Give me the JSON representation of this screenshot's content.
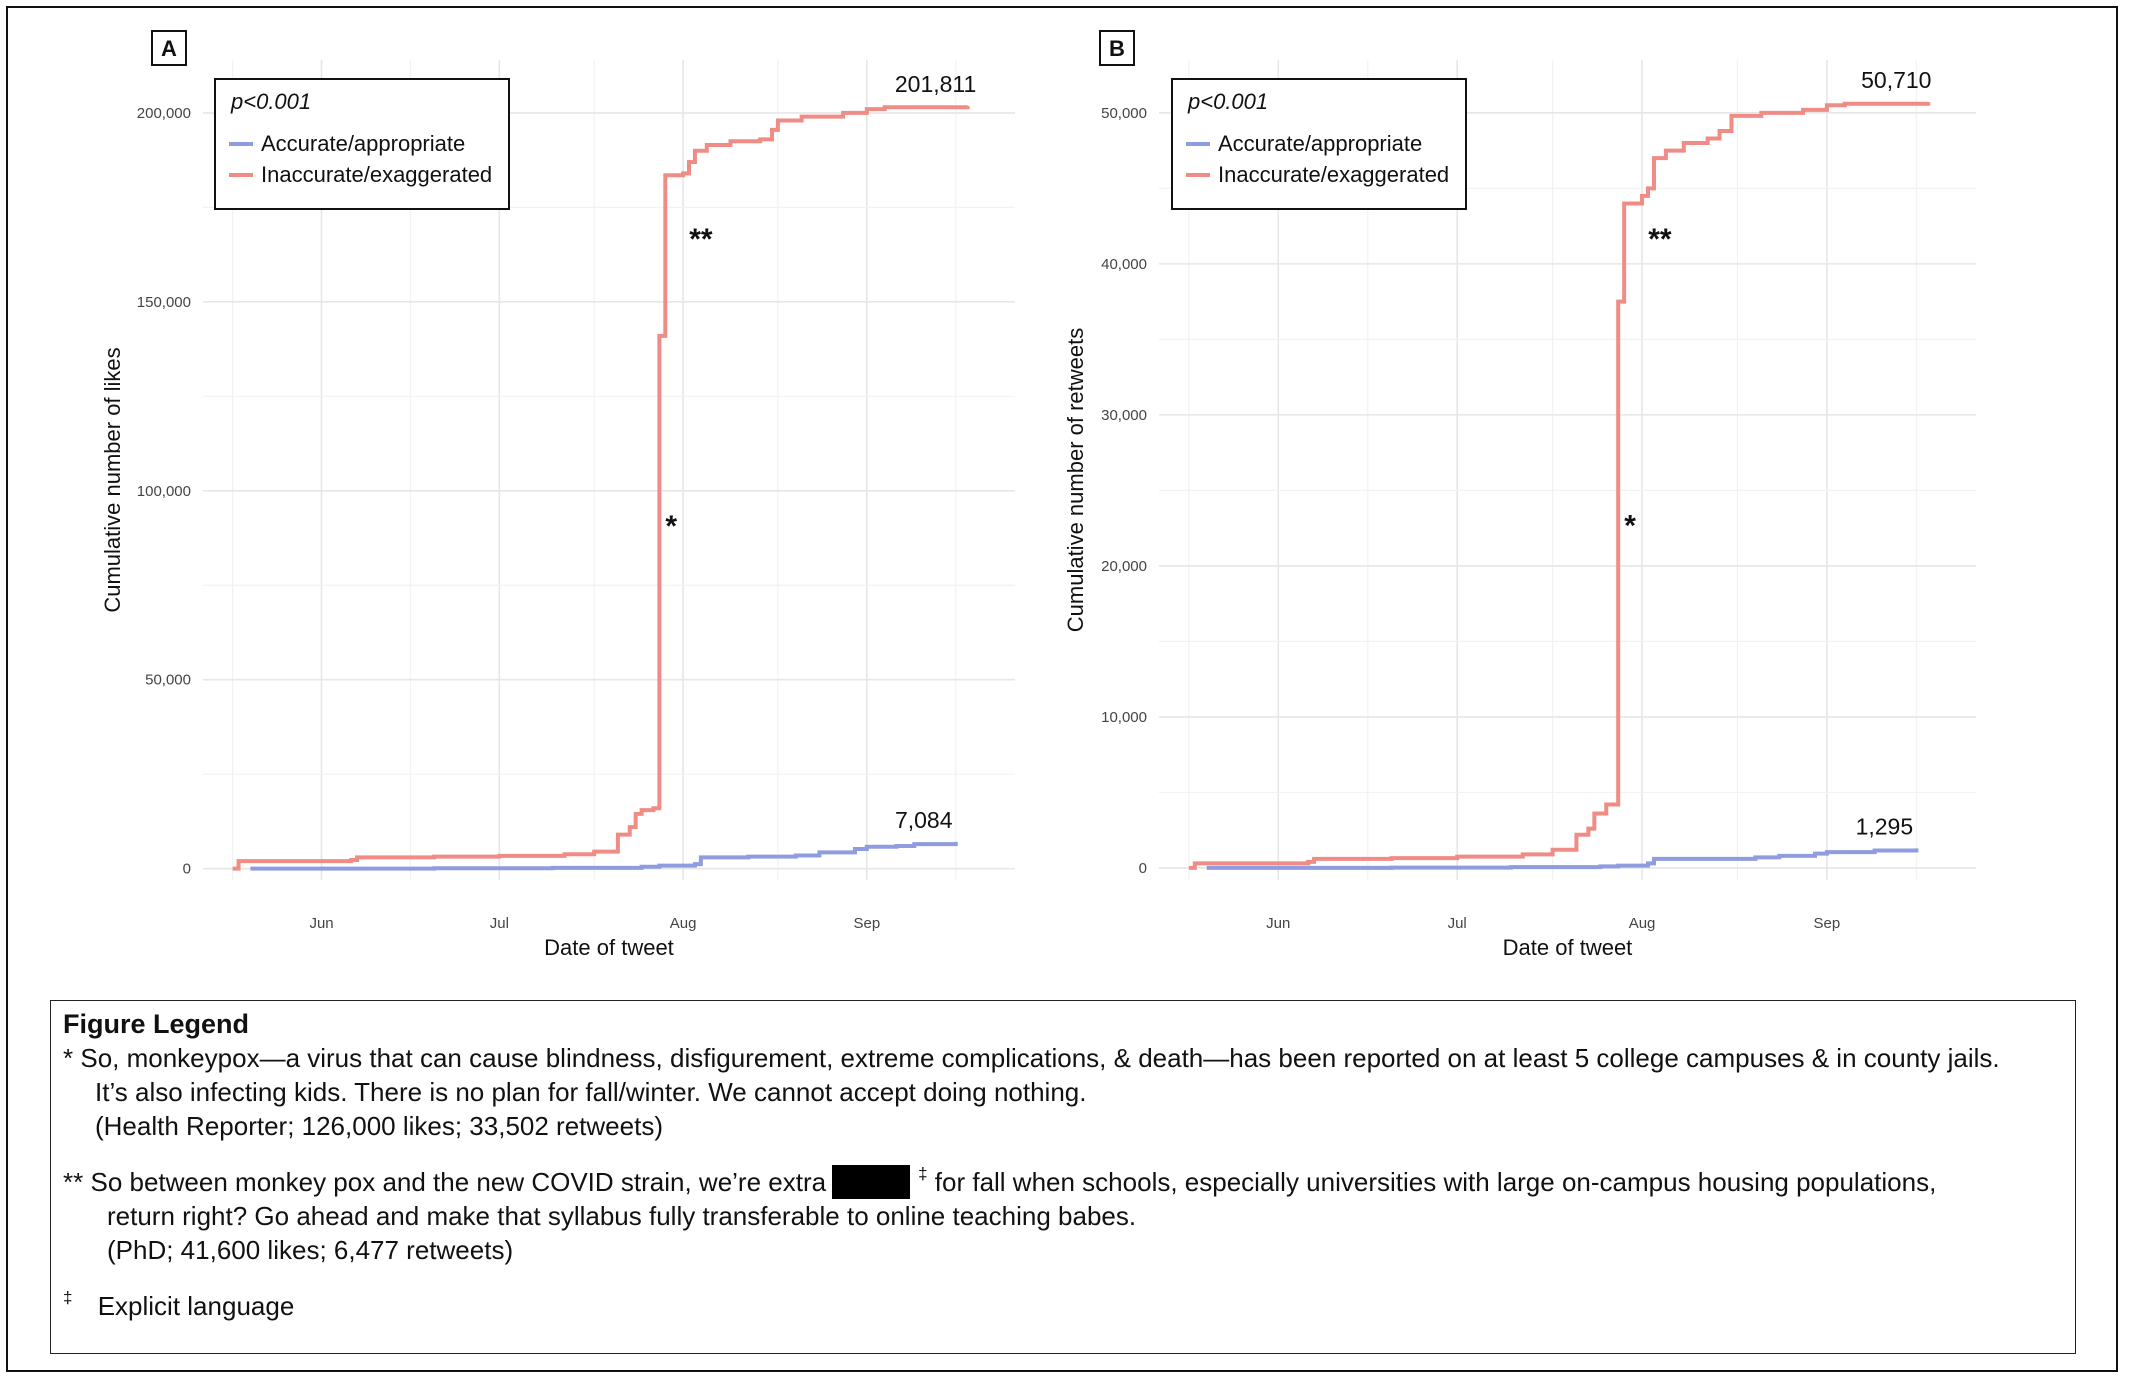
{
  "chart_data": [
    {
      "panel": "A",
      "type": "line",
      "step": true,
      "ylabel": "Cumulative number of likes",
      "xlabel": "Date of tweet",
      "pvalue": "p<0.001",
      "x_ticks": [
        "Jun",
        "Jul",
        "Aug",
        "Sep"
      ],
      "x_tick_dates": [
        "2022-06-01",
        "2022-07-01",
        "2022-08-01",
        "2022-09-01"
      ],
      "xlim": [
        "2022-05-12",
        "2022-09-26"
      ],
      "ylim": [
        -3000,
        214000
      ],
      "y_ticks": [
        0,
        50000,
        100000,
        150000,
        200000
      ],
      "y_tick_labels": [
        "0",
        "50,000",
        "100,000",
        "150,000",
        "200,000"
      ],
      "grid": true,
      "legend_position": "top-left",
      "series": [
        {
          "name": "Accurate/appropriate",
          "color": "#8f9ce0",
          "end_label": "7,084",
          "points": [
            [
              "2022-05-20",
              0
            ],
            [
              "2022-06-20",
              100
            ],
            [
              "2022-07-10",
              200
            ],
            [
              "2022-07-25",
              500
            ],
            [
              "2022-07-28",
              800
            ],
            [
              "2022-08-03",
              1200
            ],
            [
              "2022-08-04",
              3000
            ],
            [
              "2022-08-12",
              3200
            ],
            [
              "2022-08-20",
              3500
            ],
            [
              "2022-08-24",
              4300
            ],
            [
              "2022-08-30",
              5200
            ],
            [
              "2022-09-01",
              5800
            ],
            [
              "2022-09-06",
              6000
            ],
            [
              "2022-09-09",
              6500
            ],
            [
              "2022-09-16",
              7084
            ]
          ]
        },
        {
          "name": "Inaccurate/exaggerated",
          "color": "#f08c86",
          "end_label": "201,811",
          "points": [
            [
              "2022-05-17",
              0
            ],
            [
              "2022-05-18",
              2000
            ],
            [
              "2022-06-06",
              2300
            ],
            [
              "2022-06-07",
              3000
            ],
            [
              "2022-06-20",
              3200
            ],
            [
              "2022-07-01",
              3400
            ],
            [
              "2022-07-12",
              3800
            ],
            [
              "2022-07-17",
              4500
            ],
            [
              "2022-07-21",
              9000
            ],
            [
              "2022-07-23",
              11000
            ],
            [
              "2022-07-24",
              14500
            ],
            [
              "2022-07-25",
              15500
            ],
            [
              "2022-07-27",
              16000
            ],
            [
              "2022-07-28",
              141000
            ],
            [
              "2022-07-29",
              183500
            ],
            [
              "2022-08-01",
              184000
            ],
            [
              "2022-08-02",
              187000
            ],
            [
              "2022-08-03",
              190000
            ],
            [
              "2022-08-05",
              191500
            ],
            [
              "2022-08-09",
              192500
            ],
            [
              "2022-08-14",
              193000
            ],
            [
              "2022-08-16",
              195500
            ],
            [
              "2022-08-17",
              198000
            ],
            [
              "2022-08-21",
              199000
            ],
            [
              "2022-08-28",
              200000
            ],
            [
              "2022-09-01",
              201000
            ],
            [
              "2022-09-04",
              201500
            ],
            [
              "2022-09-18",
              201811
            ]
          ]
        }
      ],
      "annotations": [
        {
          "text": "*",
          "x": "2022-07-30",
          "y": 88000
        },
        {
          "text": "**",
          "x": "2022-08-04",
          "y": 164000
        }
      ]
    },
    {
      "panel": "B",
      "type": "line",
      "step": true,
      "ylabel": "Cumulative number of retweets",
      "xlabel": "Date of tweet",
      "pvalue": "p<0.001",
      "x_ticks": [
        "Jun",
        "Jul",
        "Aug",
        "Sep"
      ],
      "x_tick_dates": [
        "2022-06-01",
        "2022-07-01",
        "2022-08-01",
        "2022-09-01"
      ],
      "xlim": [
        "2022-05-12",
        "2022-09-26"
      ],
      "ylim": [
        -800,
        53500
      ],
      "y_ticks": [
        0,
        10000,
        20000,
        30000,
        40000,
        50000
      ],
      "y_tick_labels": [
        "0",
        "10,000",
        "20,000",
        "30,000",
        "40,000",
        "50,000"
      ],
      "grid": true,
      "legend_position": "top-left",
      "series": [
        {
          "name": "Accurate/appropriate",
          "color": "#8f9ce0",
          "end_label": "1,295",
          "points": [
            [
              "2022-05-20",
              0
            ],
            [
              "2022-06-20",
              20
            ],
            [
              "2022-07-10",
              50
            ],
            [
              "2022-07-25",
              100
            ],
            [
              "2022-07-28",
              150
            ],
            [
              "2022-08-02",
              300
            ],
            [
              "2022-08-03",
              600
            ],
            [
              "2022-08-20",
              700
            ],
            [
              "2022-08-24",
              800
            ],
            [
              "2022-08-30",
              950
            ],
            [
              "2022-09-01",
              1050
            ],
            [
              "2022-09-09",
              1150
            ],
            [
              "2022-09-16",
              1295
            ]
          ]
        },
        {
          "name": "Inaccurate/exaggerated",
          "color": "#f08c86",
          "end_label": "50,710",
          "points": [
            [
              "2022-05-17",
              0
            ],
            [
              "2022-05-18",
              300
            ],
            [
              "2022-06-06",
              400
            ],
            [
              "2022-06-07",
              600
            ],
            [
              "2022-06-20",
              650
            ],
            [
              "2022-07-01",
              750
            ],
            [
              "2022-07-12",
              900
            ],
            [
              "2022-07-17",
              1200
            ],
            [
              "2022-07-21",
              2200
            ],
            [
              "2022-07-23",
              2600
            ],
            [
              "2022-07-24",
              3600
            ],
            [
              "2022-07-26",
              4200
            ],
            [
              "2022-07-28",
              37500
            ],
            [
              "2022-07-29",
              44000
            ],
            [
              "2022-08-01",
              44500
            ],
            [
              "2022-08-02",
              45000
            ],
            [
              "2022-08-03",
              47000
            ],
            [
              "2022-08-05",
              47500
            ],
            [
              "2022-08-08",
              48000
            ],
            [
              "2022-08-12",
              48300
            ],
            [
              "2022-08-14",
              48800
            ],
            [
              "2022-08-16",
              49800
            ],
            [
              "2022-08-21",
              50000
            ],
            [
              "2022-08-28",
              50200
            ],
            [
              "2022-09-01",
              50500
            ],
            [
              "2022-09-04",
              50600
            ],
            [
              "2022-09-18",
              50710
            ]
          ]
        }
      ],
      "annotations": [
        {
          "text": "*",
          "x": "2022-07-30",
          "y": 22000
        },
        {
          "text": "**",
          "x": "2022-08-04",
          "y": 41000
        }
      ]
    }
  ],
  "figure_legend": {
    "title": "Figure Legend",
    "note1_marker": "*",
    "note1_line1": "So, monkeypox—a virus that can cause blindness, disfigurement, extreme complications, & death—has been reported on at least 5 college campuses & in county jails.",
    "note1_line2": "It’s also infecting kids. There is no plan for fall/winter. We cannot accept doing nothing.",
    "note1_source": "(Health Reporter; 126,000 likes; 33,502 retweets)",
    "note2_marker": "**",
    "note2_line1_a": "So between monkey pox and the new COVID strain, we’re extra",
    "note2_sup": "‡",
    "note2_line1_b": "for fall when schools, especially universities with large on-campus housing populations,",
    "note2_line2": "return right? Go ahead and make that syllabus fully transferable to online teaching babes.",
    "note2_source": "(PhD; 41,600 likes; 6,477 retweets)",
    "footnote_marker": "‡",
    "footnote_text": "Explicit language"
  }
}
